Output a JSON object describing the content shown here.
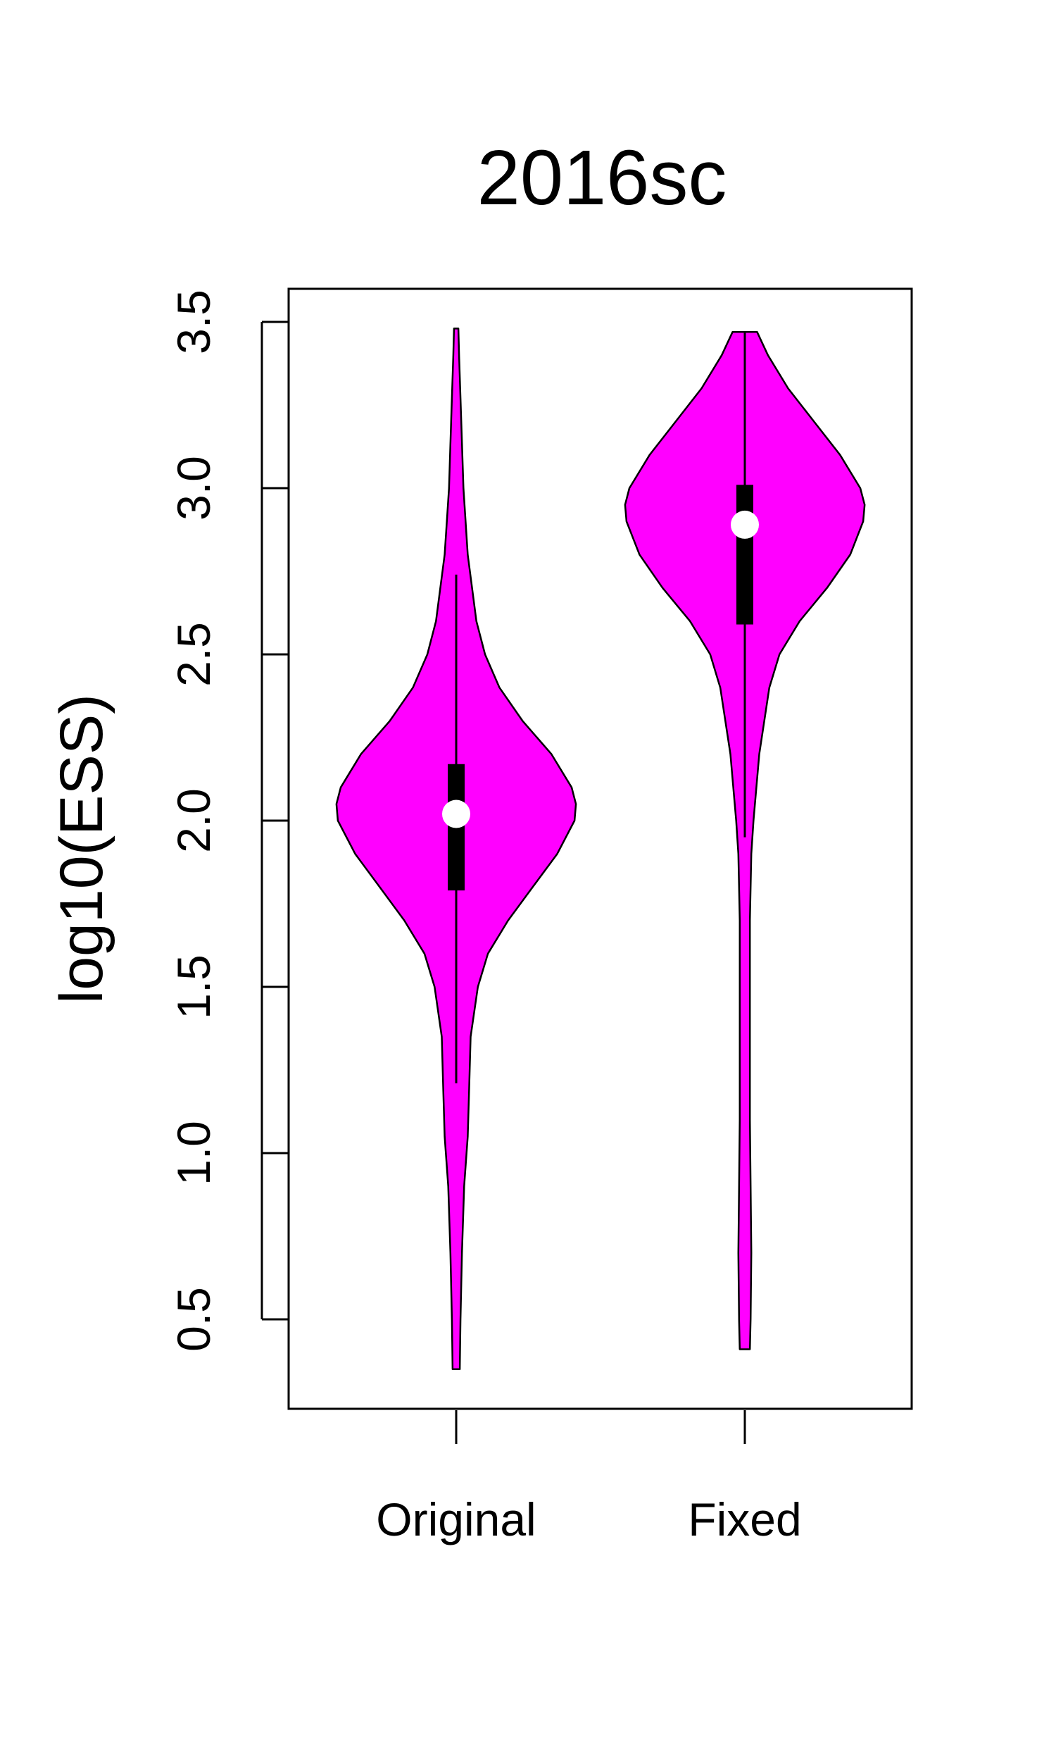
{
  "chart_data": {
    "type": "violin",
    "title": "2016sc",
    "xlabel": "",
    "ylabel": "log10(ESS)",
    "categories": [
      "Original",
      "Fixed"
    ],
    "ylim": [
      0.3,
      3.6
    ],
    "yticks": [
      0.5,
      1.0,
      1.5,
      2.0,
      2.5,
      3.0,
      3.5
    ],
    "ytick_labels": [
      "0.5",
      "1.0",
      "1.5",
      "2.0",
      "2.5",
      "3.0",
      "3.5"
    ],
    "fill_color": "#ff00ff",
    "violins": [
      {
        "category": "Original",
        "min": 0.35,
        "max": 3.48,
        "q1": 1.79,
        "median": 2.02,
        "q3": 2.17,
        "whisker_low": 1.21,
        "whisker_high": 2.74,
        "density": [
          [
            0.35,
            0.025
          ],
          [
            0.5,
            0.03
          ],
          [
            0.7,
            0.04
          ],
          [
            0.9,
            0.055
          ],
          [
            1.05,
            0.08
          ],
          [
            1.2,
            0.09
          ],
          [
            1.35,
            0.1
          ],
          [
            1.5,
            0.15
          ],
          [
            1.6,
            0.22
          ],
          [
            1.7,
            0.36
          ],
          [
            1.8,
            0.53
          ],
          [
            1.9,
            0.7
          ],
          [
            2.0,
            0.82
          ],
          [
            2.05,
            0.83
          ],
          [
            2.1,
            0.8
          ],
          [
            2.2,
            0.66
          ],
          [
            2.3,
            0.46
          ],
          [
            2.4,
            0.3
          ],
          [
            2.5,
            0.2
          ],
          [
            2.6,
            0.14
          ],
          [
            2.8,
            0.08
          ],
          [
            3.0,
            0.05
          ],
          [
            3.2,
            0.035
          ],
          [
            3.4,
            0.02
          ],
          [
            3.48,
            0.015
          ]
        ]
      },
      {
        "category": "Fixed",
        "min": 0.41,
        "max": 3.47,
        "q1": 2.59,
        "median": 2.89,
        "q3": 3.01,
        "whisker_low": 1.95,
        "whisker_high": 3.47,
        "density": [
          [
            0.41,
            0.035
          ],
          [
            0.5,
            0.04
          ],
          [
            0.7,
            0.045
          ],
          [
            0.9,
            0.04
          ],
          [
            1.1,
            0.035
          ],
          [
            1.3,
            0.035
          ],
          [
            1.5,
            0.035
          ],
          [
            1.7,
            0.035
          ],
          [
            1.9,
            0.045
          ],
          [
            2.0,
            0.06
          ],
          [
            2.2,
            0.1
          ],
          [
            2.4,
            0.17
          ],
          [
            2.5,
            0.24
          ],
          [
            2.6,
            0.38
          ],
          [
            2.7,
            0.57
          ],
          [
            2.8,
            0.73
          ],
          [
            2.9,
            0.82
          ],
          [
            2.95,
            0.83
          ],
          [
            3.0,
            0.8
          ],
          [
            3.1,
            0.66
          ],
          [
            3.2,
            0.48
          ],
          [
            3.3,
            0.3
          ],
          [
            3.4,
            0.16
          ],
          [
            3.47,
            0.085
          ]
        ]
      }
    ]
  }
}
